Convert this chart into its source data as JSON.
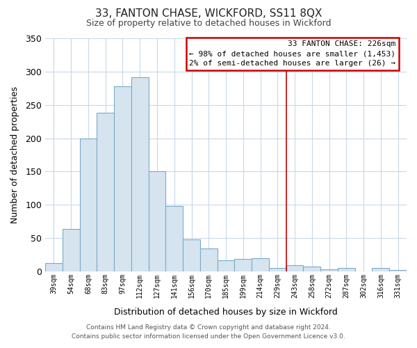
{
  "title": "33, FANTON CHASE, WICKFORD, SS11 8QX",
  "subtitle": "Size of property relative to detached houses in Wickford",
  "xlabel": "Distribution of detached houses by size in Wickford",
  "ylabel": "Number of detached properties",
  "bar_labels": [
    "39sqm",
    "54sqm",
    "68sqm",
    "83sqm",
    "97sqm",
    "112sqm",
    "127sqm",
    "141sqm",
    "156sqm",
    "170sqm",
    "185sqm",
    "199sqm",
    "214sqm",
    "229sqm",
    "243sqm",
    "258sqm",
    "272sqm",
    "287sqm",
    "302sqm",
    "316sqm",
    "331sqm"
  ],
  "bar_heights": [
    13,
    64,
    200,
    238,
    278,
    291,
    150,
    98,
    48,
    35,
    17,
    19,
    20,
    5,
    9,
    7,
    3,
    5,
    0,
    5,
    2
  ],
  "bar_color": "#d6e4f0",
  "bar_edge_color": "#7aaac8",
  "ylim": [
    0,
    350
  ],
  "yticks": [
    0,
    50,
    100,
    150,
    200,
    250,
    300,
    350
  ],
  "vline_index": 13,
  "vline_color": "#cc0000",
  "annotation_title": "33 FANTON CHASE: 226sqm",
  "annotation_line1": "← 98% of detached houses are smaller (1,453)",
  "annotation_line2": "2% of semi-detached houses are larger (26) →",
  "footer_line1": "Contains HM Land Registry data © Crown copyright and database right 2024.",
  "footer_line2": "Contains public sector information licensed under the Open Government Licence v3.0.",
  "background_color": "#ffffff",
  "plot_bg_color": "#ffffff",
  "grid_color": "#c8d8e8"
}
